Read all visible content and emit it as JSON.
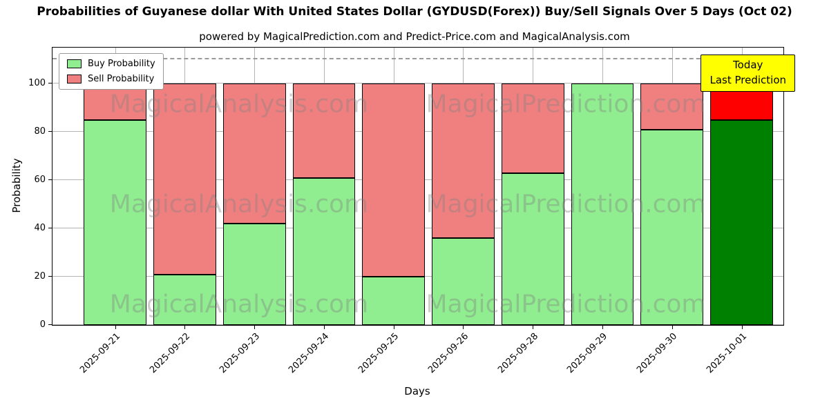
{
  "chart_data": {
    "type": "bar",
    "stacked": true,
    "title": "Probabilities of Guyanese dollar With United States Dollar (GYDUSD(Forex)) Buy/Sell Signals Over 5 Days (Oct 02)",
    "subtitle": "powered by MagicalPrediction.com and Predict-Price.com and MagicalAnalysis.com",
    "xlabel": "Days",
    "ylabel": "Probability",
    "categories": [
      "2025-09-21",
      "2025-09-22",
      "2025-09-23",
      "2025-09-24",
      "2025-09-25",
      "2025-09-26",
      "2025-09-28",
      "2025-09-29",
      "2025-09-30",
      "2025-10-01"
    ],
    "series": [
      {
        "name": "Buy Probability",
        "color": "#90ee90",
        "final_bar_color": "#008000",
        "values": [
          85,
          21,
          42,
          61,
          20,
          36,
          63,
          100,
          81,
          85
        ]
      },
      {
        "name": "Sell Probability",
        "color": "#f08080",
        "final_bar_color": "#ff0000",
        "values": [
          15,
          79,
          58,
          39,
          80,
          64,
          37,
          0,
          19,
          15
        ]
      }
    ],
    "ylim": [
      0,
      115
    ],
    "yticks": [
      0,
      20,
      40,
      60,
      80,
      100
    ],
    "dashed_line_y": 110,
    "grid": true,
    "legend_position": "upper-left",
    "bar_edge_color": "#000000",
    "grid_color": "#b3b3b3",
    "dashed_line_color": "#999999"
  },
  "annotation_box": {
    "lines": [
      "Today",
      "Last Prediction"
    ],
    "bg_color": "#ffff00",
    "border_color": "#000000"
  },
  "watermarks": {
    "left_text": "MagicalAnalysis.com",
    "right_text": "MagicalPrediction.com",
    "rows": 3,
    "color": "rgba(128,128,128,0.38)"
  }
}
